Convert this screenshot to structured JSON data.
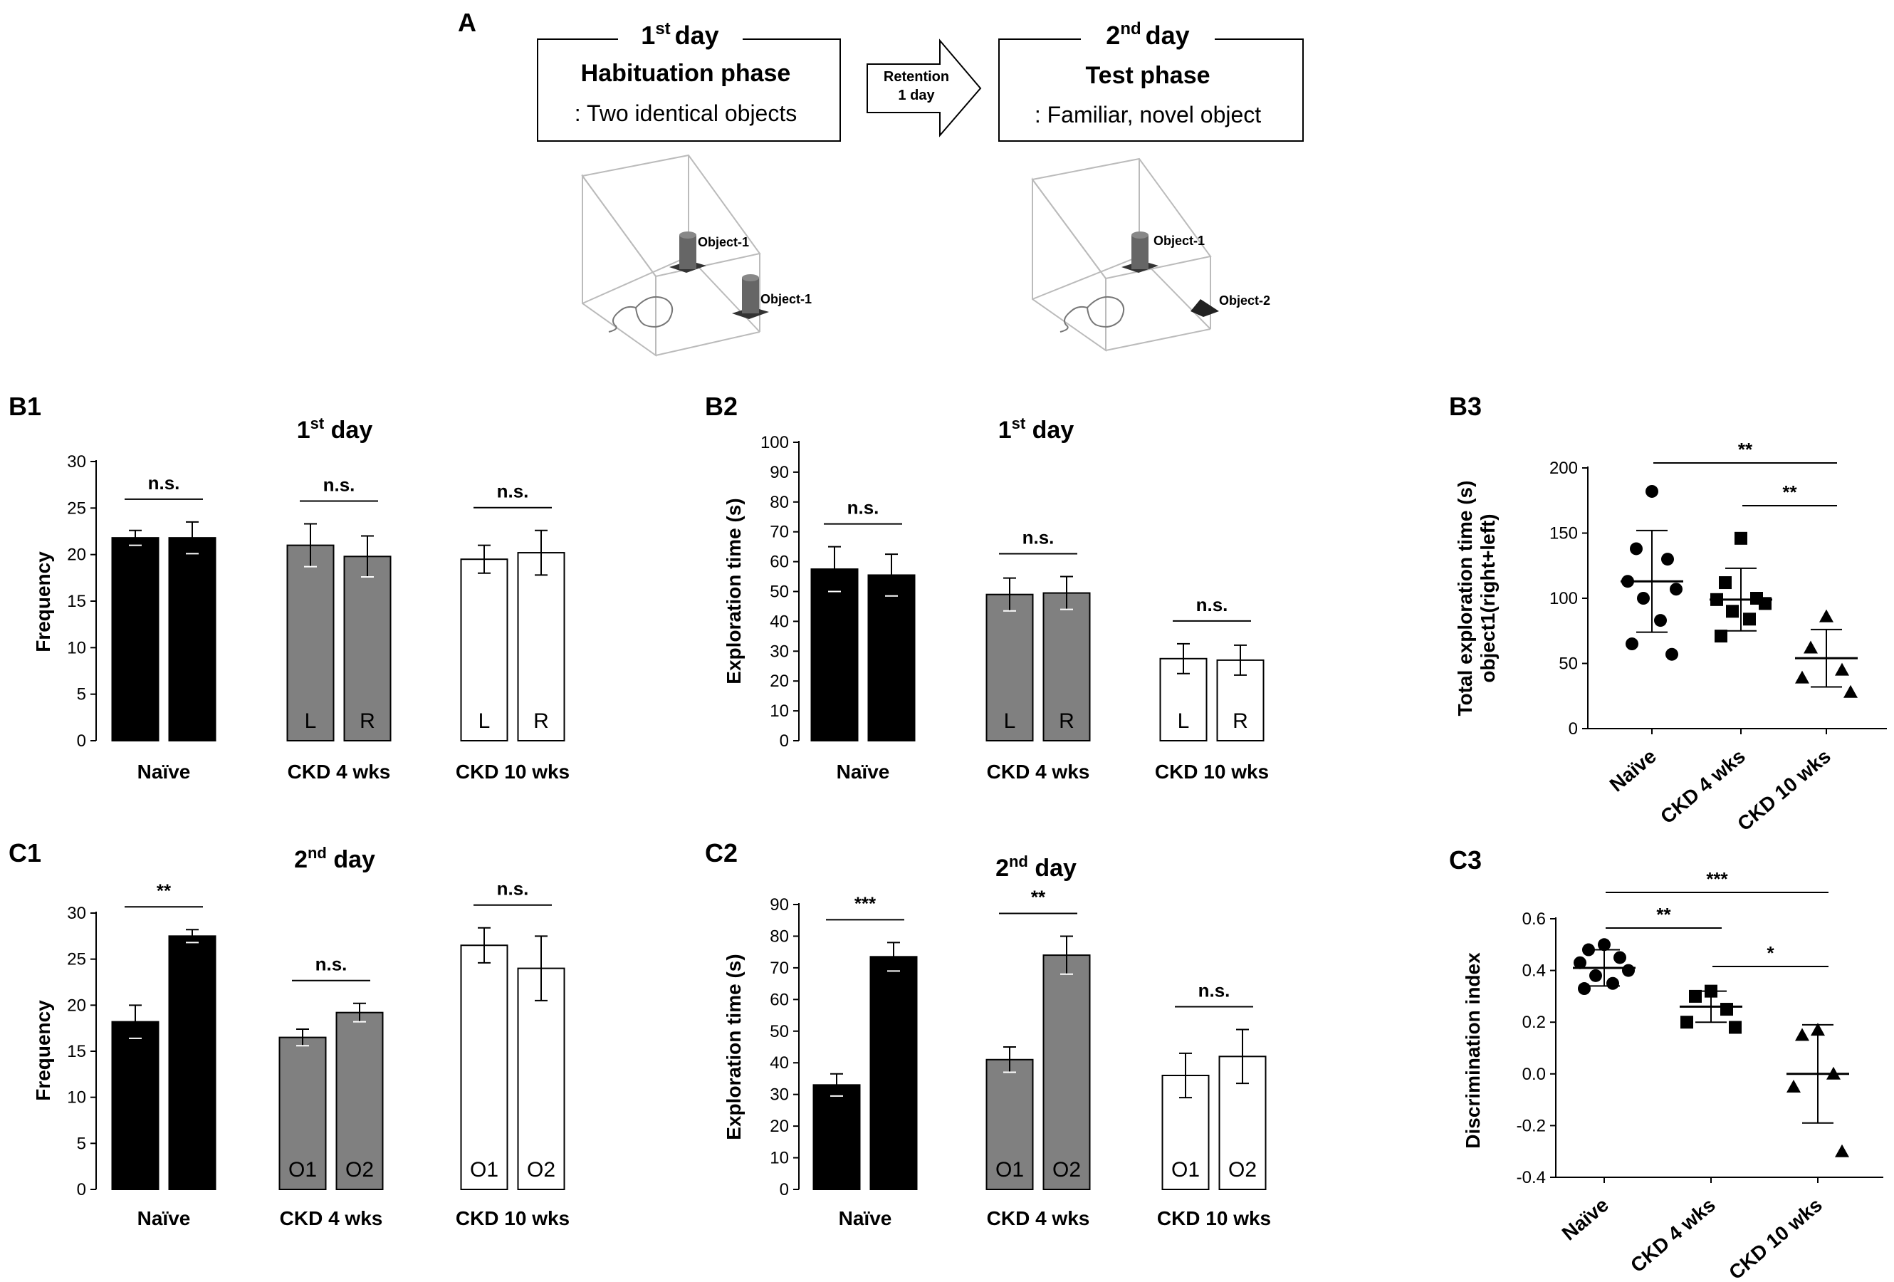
{
  "panel_a": {
    "label": "A",
    "day1": {
      "ordinal": "1",
      "suffix": "st",
      "word": "day",
      "title": "Habituation phase",
      "subtitle": ": Two identical objects",
      "obj_a": "Object-1",
      "obj_b": "Object-1"
    },
    "arrow": {
      "line1": "Retention",
      "line2": "1 day"
    },
    "day2": {
      "ordinal": "2",
      "suffix": "nd",
      "word": "day",
      "title": "Test phase",
      "subtitle": ": Familiar, novel object",
      "obj_a": "Object-1",
      "obj_b": "Object-2"
    }
  },
  "colors": {
    "naive": "#000000",
    "ckd4": "#808080",
    "ckd10": "#ffffff",
    "text_dark": "#000000",
    "text_light": "#ffffff"
  },
  "chart_data": [
    {
      "id": "B1",
      "type": "bar",
      "panel_label": "B1",
      "title": {
        "main": "1",
        "sup": "st",
        "rest": " day"
      },
      "ylabel": "Frequency",
      "ylim": [
        0,
        30
      ],
      "yticks": [
        0,
        5,
        10,
        15,
        20,
        25,
        30
      ],
      "groups": [
        "Naïve",
        "CKD  4 wks",
        "CKD  10 wks"
      ],
      "bar_labels": [
        "L",
        "R"
      ],
      "series": [
        {
          "name": "L",
          "values": [
            21.8,
            21.0,
            19.5
          ]
        },
        {
          "name": "R",
          "values": [
            21.8,
            19.8,
            20.2
          ]
        }
      ],
      "errors": [
        [
          0.8,
          2.3,
          1.5
        ],
        [
          1.7,
          2.2,
          2.4
        ]
      ],
      "significance": [
        "n.s.",
        "n.s.",
        "n.s."
      ]
    },
    {
      "id": "B2",
      "type": "bar",
      "panel_label": "B2",
      "title": {
        "main": "1",
        "sup": "st",
        "rest": " day"
      },
      "ylabel": "Exploration time (s)",
      "ylim": [
        0,
        100
      ],
      "yticks": [
        0,
        10,
        20,
        30,
        40,
        50,
        60,
        70,
        80,
        90,
        100
      ],
      "groups": [
        "Naïve",
        "CKD  4 wks",
        "CKD  10 wks"
      ],
      "bar_labels": [
        "L",
        "R"
      ],
      "series": [
        {
          "name": "L",
          "values": [
            57.5,
            49,
            27.5
          ]
        },
        {
          "name": "R",
          "values": [
            55.5,
            49.5,
            27
          ]
        }
      ],
      "errors": [
        [
          7.5,
          5.5,
          5
        ],
        [
          7,
          5.5,
          5
        ]
      ],
      "significance": [
        "n.s.",
        "n.s.",
        "n.s."
      ]
    },
    {
      "id": "B3",
      "type": "scatter",
      "panel_label": "B3",
      "ylabel_lines": [
        "Total exploration time (s)",
        "object1(right+left)"
      ],
      "ylim": [
        0,
        200
      ],
      "yticks": [
        0,
        50,
        100,
        150,
        200
      ],
      "groups": [
        "Naïve",
        "CKD 4 wks",
        "CKD 10 wks"
      ],
      "points": [
        [
          182,
          138,
          130,
          113,
          107,
          100,
          83,
          65,
          57
        ],
        [
          146,
          112,
          100,
          99,
          96,
          90,
          84,
          71
        ],
        [
          86,
          62,
          45,
          39,
          28
        ]
      ],
      "mean": [
        113,
        99,
        54
      ],
      "sd": [
        39,
        24,
        22
      ],
      "significance": [
        {
          "pair": [
            0,
            2
          ],
          "label": "**"
        },
        {
          "pair": [
            1,
            2
          ],
          "label": "**"
        }
      ]
    },
    {
      "id": "C1",
      "type": "bar",
      "panel_label": "C1",
      "title": {
        "main": "2",
        "sup": "nd",
        "rest": " day"
      },
      "ylabel": "Frequency",
      "ylim": [
        0,
        30
      ],
      "yticks": [
        0,
        5,
        10,
        15,
        20,
        25,
        30
      ],
      "groups": [
        "Naïve",
        "CKD  4 wks",
        "CKD  10 wks"
      ],
      "bar_labels": [
        "O1",
        "O2"
      ],
      "series": [
        {
          "name": "O1",
          "values": [
            18.2,
            16.5,
            26.5
          ]
        },
        {
          "name": "O2",
          "values": [
            27.5,
            19.2,
            24
          ]
        }
      ],
      "errors": [
        [
          1.8,
          0.9,
          1.9
        ],
        [
          0.7,
          1.0,
          3.5
        ]
      ],
      "significance": [
        "**",
        "n.s.",
        "n.s."
      ]
    },
    {
      "id": "C2",
      "type": "bar",
      "panel_label": "C2",
      "title": {
        "main": "2",
        "sup": "nd",
        "rest": " day"
      },
      "ylabel": "Exploration time (s)",
      "ylim": [
        0,
        90
      ],
      "yticks": [
        0,
        10,
        20,
        30,
        40,
        50,
        60,
        70,
        80,
        90
      ],
      "groups": [
        "Naïve",
        "CKD  4 wks",
        "CKD  10 wks"
      ],
      "bar_labels": [
        "O1",
        "O2"
      ],
      "series": [
        {
          "name": "O1",
          "values": [
            33,
            41,
            36
          ]
        },
        {
          "name": "O2",
          "values": [
            73.5,
            74,
            42
          ]
        }
      ],
      "errors": [
        [
          3.5,
          4,
          7
        ],
        [
          4.5,
          6,
          8.5
        ]
      ],
      "significance": [
        "***",
        "**",
        "n.s."
      ]
    },
    {
      "id": "C3",
      "type": "scatter",
      "panel_label": "C3",
      "ylabel_lines": [
        "Discrimination index"
      ],
      "ylim": [
        -0.4,
        0.6
      ],
      "yticks": [
        -0.4,
        -0.2,
        0.0,
        0.2,
        0.4,
        0.6
      ],
      "ytick_labels": [
        "-0.4",
        "-0.2",
        "0.0",
        "0.2",
        "0.4",
        "0.6"
      ],
      "groups": [
        "Naïve",
        "CKD 4 wks",
        "CKD 10 wks"
      ],
      "points": [
        [
          0.5,
          0.48,
          0.45,
          0.43,
          0.4,
          0.38,
          0.35,
          0.33
        ],
        [
          0.32,
          0.3,
          0.25,
          0.2,
          0.18
        ],
        [
          0.17,
          0.15,
          0.0,
          -0.05,
          -0.3
        ]
      ],
      "mean": [
        0.41,
        0.26,
        0.0
      ],
      "sd": [
        0.07,
        0.06,
        0.19
      ],
      "significance": [
        {
          "pair": [
            0,
            1
          ],
          "label": "**"
        },
        {
          "pair": [
            0,
            2
          ],
          "label": "***"
        },
        {
          "pair": [
            1,
            2
          ],
          "label": "*"
        }
      ]
    }
  ]
}
